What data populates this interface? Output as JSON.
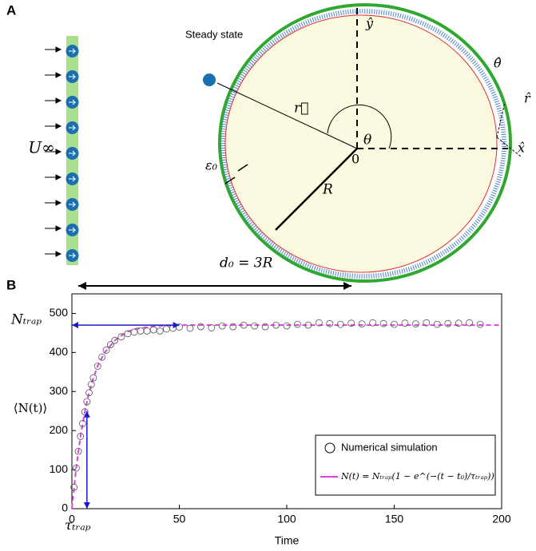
{
  "panel_a": {
    "label": "A",
    "annotation": "Steady state",
    "labels": {
      "y_hat": "ŷ",
      "theta_hat": "θ̂",
      "r_hat": "r̂",
      "x_hat": "x̂",
      "r_vec": "r⃗",
      "theta": "θ",
      "origin": "0",
      "radius": "R",
      "epsilon": "ε₀",
      "u_inf": "U∞",
      "distance": "d₀ = 3R"
    }
  },
  "chart_data": {
    "type": "scatter",
    "panel_label": "B",
    "xlabel": "Time",
    "ylabel": "⟨N(t)⟩",
    "xlim": [
      0,
      200
    ],
    "ylim": [
      0,
      550
    ],
    "xticks": [
      0,
      50,
      100,
      150,
      200
    ],
    "yticks": [
      0,
      100,
      200,
      300,
      400,
      500
    ],
    "legend": "lower right",
    "series": [
      {
        "name": "Numerical simulation",
        "color": "#555555",
        "x": [
          1,
          2,
          3,
          4,
          5,
          6,
          7,
          8,
          9,
          10,
          12,
          14,
          16,
          18,
          20,
          23,
          26,
          29,
          32,
          35,
          38,
          41,
          44,
          47,
          50,
          55,
          60,
          65,
          70,
          75,
          80,
          85,
          90,
          95,
          100,
          105,
          110,
          115,
          120,
          125,
          130,
          135,
          140,
          145,
          150,
          155,
          160,
          165,
          170,
          175,
          180,
          185,
          190
        ],
        "values": [
          55,
          104,
          147,
          185,
          218,
          248,
          274,
          297,
          318,
          335,
          365,
          388,
          406,
          420,
          431,
          440,
          448,
          452,
          455,
          455,
          458,
          455,
          460,
          462,
          465,
          462,
          466,
          463,
          468,
          466,
          470,
          468,
          466,
          470,
          468,
          472,
          470,
          476,
          474,
          472,
          475,
          473,
          476,
          474,
          472,
          475,
          473,
          476,
          472,
          474,
          475,
          476,
          472
        ]
      },
      {
        "name": "N(t) = Nₜᵣₐₚ(1 − e^(−(t − t₀)/τₜᵣₐₚ))",
        "color": "#e040e0",
        "x": [
          0,
          2,
          4,
          6,
          8,
          10,
          12,
          15,
          20,
          25,
          30,
          40,
          50,
          100,
          200
        ],
        "values": [
          0,
          104,
          185,
          248,
          297,
          335,
          365,
          398,
          431,
          451,
          461,
          468,
          470,
          470,
          470
        ]
      }
    ],
    "annotations": [
      {
        "text": "Nₜᵣₐₚ",
        "axis": "y",
        "value": 470
      },
      {
        "text": "τₜᵣₐₚ",
        "axis": "x",
        "value": 7
      }
    ]
  }
}
